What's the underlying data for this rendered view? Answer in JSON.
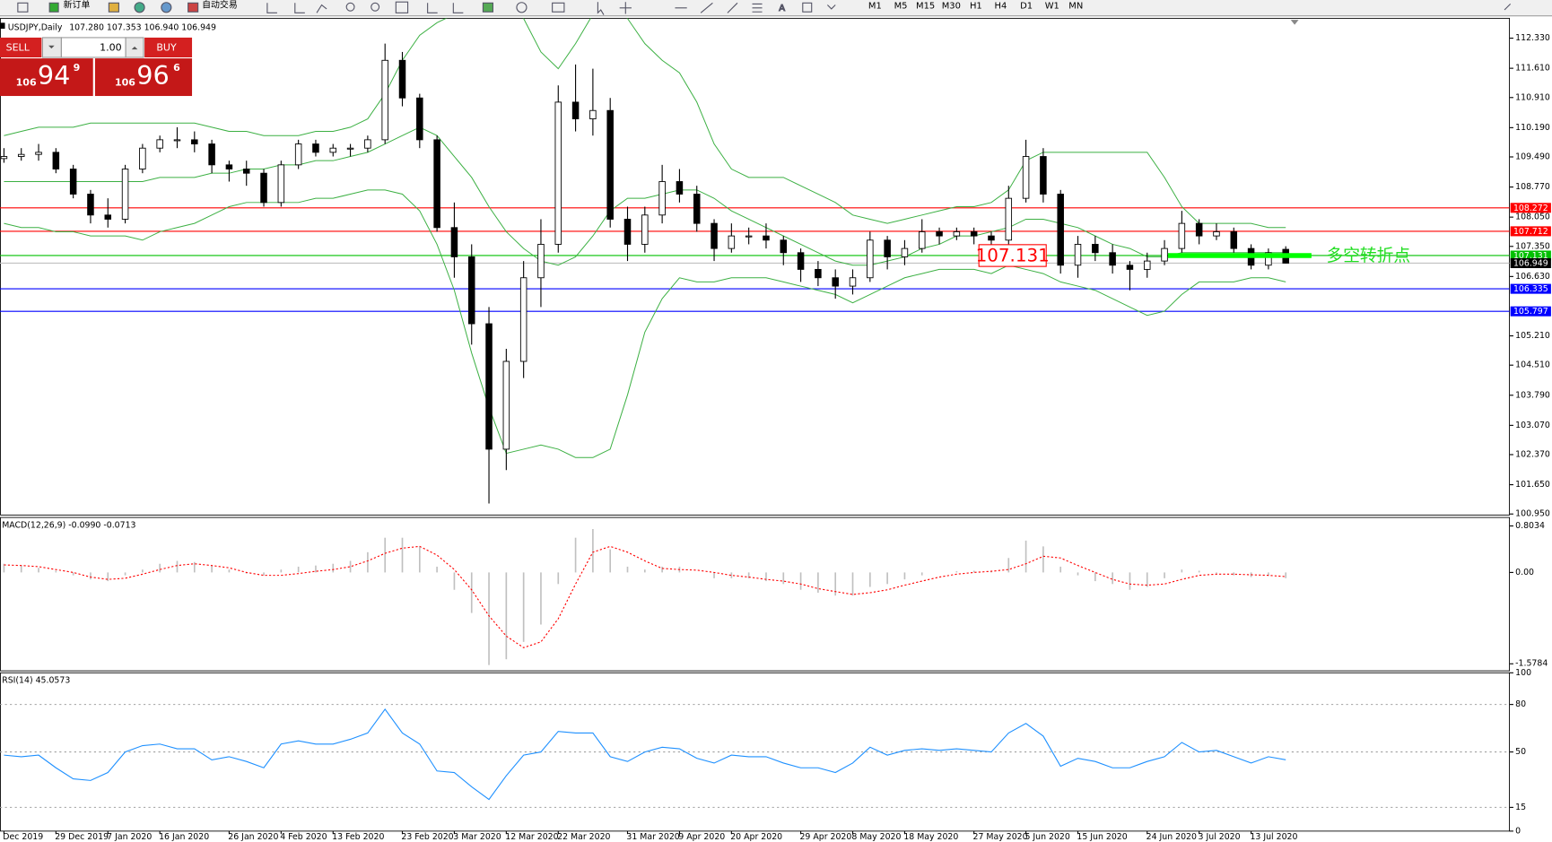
{
  "toolbar": {
    "new_order": "新订单",
    "auto_trading": "自动交易",
    "timeframes": [
      "M1",
      "M5",
      "M15",
      "M30",
      "H1",
      "H4",
      "D1",
      "W1",
      "MN"
    ]
  },
  "trade_panel": {
    "sell": "SELL",
    "buy": "BUY",
    "lots": "1.00",
    "bid": {
      "big": "106",
      "main": "94",
      "pip": "9"
    },
    "ask": {
      "big": "106",
      "main": "96",
      "pip": "6"
    }
  },
  "chart_data": [
    {
      "type": "candlestick",
      "title": "USDJPY,Daily",
      "subtitle": "107.280 107.353 106.940 106.949",
      "annotation": "多空转折点",
      "dates": [
        "Dec 2019",
        null,
        null,
        "29 Dec 2019",
        null,
        null,
        "7 Jan 2020",
        null,
        null,
        "16 Jan 2020",
        null,
        null,
        null,
        "26 Jan 2020",
        null,
        null,
        "4 Feb 2020",
        null,
        null,
        "13 Feb 2020",
        null,
        null,
        null,
        "23 Feb 2020",
        null,
        null,
        "3 Mar 2020",
        null,
        null,
        "12 Mar 2020",
        null,
        null,
        "22 Mar 2020",
        null,
        null,
        null,
        "31 Mar 2020",
        null,
        null,
        "9 Apr 2020",
        null,
        null,
        "20 Apr 2020",
        null,
        null,
        null,
        "29 Apr 2020",
        null,
        null,
        "8 May 2020",
        null,
        null,
        "18 May 2020",
        null,
        null,
        null,
        "27 May 2020",
        null,
        null,
        "5 Jun 2020",
        null,
        null,
        "15 Jun 2020",
        null,
        null,
        null,
        "24 Jun 2020",
        null,
        null,
        "3 Jul 2020",
        null,
        null,
        "13 Jul 2020",
        null,
        null
      ],
      "ohlc": [
        [
          109.45,
          109.7,
          109.35,
          109.5
        ],
        [
          109.5,
          109.7,
          109.4,
          109.55
        ],
        [
          109.55,
          109.8,
          109.4,
          109.6
        ],
        [
          109.6,
          109.7,
          109.1,
          109.2
        ],
        [
          109.2,
          109.3,
          108.5,
          108.6
        ],
        [
          108.6,
          108.7,
          107.9,
          108.1
        ],
        [
          108.1,
          108.5,
          107.8,
          108.0
        ],
        [
          108.0,
          109.3,
          107.9,
          109.2
        ],
        [
          109.2,
          109.8,
          109.1,
          109.7
        ],
        [
          109.7,
          110.0,
          109.6,
          109.9
        ],
        [
          109.9,
          110.2,
          109.7,
          109.9
        ],
        [
          109.9,
          110.1,
          109.6,
          109.8
        ],
        [
          109.8,
          109.9,
          109.1,
          109.3
        ],
        [
          109.3,
          109.4,
          108.9,
          109.2
        ],
        [
          109.2,
          109.4,
          108.8,
          109.1
        ],
        [
          109.1,
          109.2,
          108.3,
          108.4
        ],
        [
          108.4,
          109.4,
          108.3,
          109.3
        ],
        [
          109.3,
          109.9,
          109.2,
          109.8
        ],
        [
          109.8,
          109.9,
          109.5,
          109.6
        ],
        [
          109.6,
          109.8,
          109.5,
          109.7
        ],
        [
          109.7,
          109.8,
          109.5,
          109.7
        ],
        [
          109.7,
          110.0,
          109.6,
          109.9
        ],
        [
          109.9,
          112.2,
          109.8,
          111.8
        ],
        [
          111.8,
          112.0,
          110.7,
          110.9
        ],
        [
          110.9,
          111.0,
          109.7,
          109.9
        ],
        [
          109.9,
          110.0,
          107.7,
          107.8
        ],
        [
          107.8,
          108.4,
          106.6,
          107.1
        ],
        [
          107.1,
          107.4,
          105.0,
          105.5
        ],
        [
          105.5,
          105.9,
          101.2,
          102.5
        ],
        [
          102.5,
          104.9,
          102.0,
          104.6
        ],
        [
          104.6,
          107.0,
          104.2,
          106.6
        ],
        [
          106.6,
          108.0,
          105.9,
          107.4
        ],
        [
          107.4,
          111.2,
          107.2,
          110.8
        ],
        [
          110.8,
          111.7,
          110.1,
          110.4
        ],
        [
          110.4,
          111.6,
          110.0,
          110.6
        ],
        [
          110.6,
          110.9,
          107.8,
          108.0
        ],
        [
          108.0,
          108.3,
          107.0,
          107.4
        ],
        [
          107.4,
          108.3,
          107.2,
          108.1
        ],
        [
          108.1,
          109.3,
          107.9,
          108.9
        ],
        [
          108.9,
          109.2,
          108.4,
          108.6
        ],
        [
          108.6,
          108.8,
          107.7,
          107.9
        ],
        [
          107.9,
          108.0,
          107.0,
          107.3
        ],
        [
          107.3,
          107.9,
          107.2,
          107.6
        ],
        [
          107.6,
          107.8,
          107.4,
          107.6
        ],
        [
          107.6,
          107.9,
          107.3,
          107.5
        ],
        [
          107.5,
          107.6,
          106.9,
          107.2
        ],
        [
          107.2,
          107.3,
          106.5,
          106.8
        ],
        [
          106.8,
          107.0,
          106.4,
          106.6
        ],
        [
          106.6,
          106.8,
          106.1,
          106.4
        ],
        [
          106.4,
          106.8,
          106.2,
          106.6
        ],
        [
          106.6,
          107.7,
          106.5,
          107.5
        ],
        [
          107.5,
          107.6,
          106.8,
          107.1
        ],
        [
          107.1,
          107.5,
          106.9,
          107.3
        ],
        [
          107.3,
          108.0,
          107.2,
          107.7
        ],
        [
          107.7,
          107.8,
          107.4,
          107.6
        ],
        [
          107.6,
          107.8,
          107.5,
          107.7
        ],
        [
          107.7,
          107.8,
          107.4,
          107.6
        ],
        [
          107.6,
          107.7,
          107.3,
          107.5
        ],
        [
          107.5,
          108.8,
          107.4,
          108.5
        ],
        [
          108.5,
          109.9,
          108.4,
          109.5
        ],
        [
          109.5,
          109.7,
          108.4,
          108.6
        ],
        [
          108.6,
          108.7,
          106.7,
          106.9
        ],
        [
          106.9,
          107.6,
          106.6,
          107.4
        ],
        [
          107.4,
          107.6,
          107.0,
          107.2
        ],
        [
          107.2,
          107.4,
          106.7,
          106.9
        ],
        [
          106.9,
          107.0,
          106.3,
          106.8
        ],
        [
          106.8,
          107.2,
          106.6,
          107.0
        ],
        [
          107.0,
          107.5,
          106.9,
          107.3
        ],
        [
          107.3,
          108.2,
          107.2,
          107.9
        ],
        [
          107.9,
          108.0,
          107.4,
          107.6
        ],
        [
          107.6,
          107.9,
          107.5,
          107.7
        ],
        [
          107.7,
          107.8,
          107.2,
          107.3
        ],
        [
          107.3,
          107.4,
          106.8,
          106.9
        ],
        [
          106.9,
          107.3,
          106.8,
          107.2
        ],
        [
          107.28,
          107.353,
          106.94,
          106.949
        ]
      ],
      "bands": [
        {
          "color": "#3cb043",
          "values": [
            110.0,
            110.1,
            110.2,
            110.2,
            110.2,
            110.3,
            110.3,
            110.3,
            110.3,
            110.3,
            110.3,
            110.3,
            110.2,
            110.1,
            110.1,
            110.0,
            110.0,
            110.0,
            110.1,
            110.1,
            110.2,
            110.4,
            111.0,
            111.8,
            112.4,
            112.7,
            112.9,
            113.5,
            113.8,
            113.4,
            112.8,
            112.0,
            111.6,
            112.2,
            112.9,
            113.2,
            112.8,
            112.2,
            111.8,
            111.5,
            110.8,
            109.8,
            109.2,
            109.0,
            109.0,
            109.0,
            108.8,
            108.6,
            108.4,
            108.1,
            108.0,
            107.9,
            108.0,
            108.1,
            108.2,
            108.3,
            108.3,
            108.4,
            108.7,
            109.4,
            109.6,
            109.6,
            109.6,
            109.6,
            109.6,
            109.6,
            109.6,
            109.0,
            108.3,
            107.9,
            107.9,
            107.9,
            107.9,
            107.8,
            107.8
          ]
        },
        {
          "color": "#3cb043",
          "values": [
            108.9,
            108.9,
            108.9,
            108.9,
            108.9,
            108.9,
            108.9,
            108.9,
            108.9,
            109.0,
            109.0,
            109.0,
            109.1,
            109.1,
            109.2,
            109.2,
            109.3,
            109.3,
            109.4,
            109.4,
            109.5,
            109.6,
            109.8,
            110.0,
            110.2,
            110.0,
            109.5,
            109.0,
            108.3,
            107.7,
            107.3,
            107.0,
            106.9,
            107.1,
            107.6,
            108.2,
            108.5,
            108.5,
            108.6,
            108.7,
            108.7,
            108.5,
            108.2,
            108.0,
            107.8,
            107.6,
            107.4,
            107.2,
            107.0,
            106.9,
            106.9,
            107.0,
            107.1,
            107.3,
            107.4,
            107.6,
            107.6,
            107.7,
            107.8,
            108.0,
            108.0,
            107.9,
            107.8,
            107.6,
            107.4,
            107.3,
            107.1,
            107.1,
            107.2,
            107.2,
            107.2,
            107.2,
            107.2,
            107.2,
            107.2
          ]
        },
        {
          "color": "#3cb043",
          "values": [
            107.9,
            107.8,
            107.8,
            107.7,
            107.7,
            107.6,
            107.6,
            107.6,
            107.5,
            107.7,
            107.8,
            107.9,
            108.1,
            108.3,
            108.4,
            108.4,
            108.4,
            108.4,
            108.5,
            108.5,
            108.6,
            108.7,
            108.7,
            108.6,
            108.2,
            107.4,
            106.3,
            104.8,
            103.5,
            102.4,
            102.5,
            102.6,
            102.5,
            102.3,
            102.3,
            102.5,
            103.8,
            105.3,
            106.1,
            106.6,
            106.5,
            106.5,
            106.6,
            106.6,
            106.6,
            106.5,
            106.4,
            106.3,
            106.2,
            106.0,
            106.2,
            106.4,
            106.6,
            106.7,
            106.8,
            106.8,
            106.8,
            106.7,
            106.9,
            106.8,
            106.7,
            106.5,
            106.4,
            106.3,
            106.1,
            105.9,
            105.7,
            105.8,
            106.2,
            106.5,
            106.5,
            106.5,
            106.6,
            106.6,
            106.5
          ]
        }
      ],
      "hlines": [
        {
          "value": 108.272,
          "color": "#ff0000",
          "label_color": "#ff0000"
        },
        {
          "value": 107.712,
          "color": "#ff0000",
          "label_color": "#ff0000"
        },
        {
          "value": 107.131,
          "color": "#00c000",
          "label_color": "#00c000"
        },
        {
          "value": 106.949,
          "color": "#c0c0c0",
          "label_color": "#000000"
        },
        {
          "value": 106.335,
          "color": "#0000ff",
          "label_color": "#0000ff"
        },
        {
          "value": 105.797,
          "color": "#0000ff",
          "label_color": "#0000ff"
        }
      ],
      "ylim": [
        100.926,
        112.805
      ],
      "yticks": [
        {
          "value": 112.33,
          "label": "112.330"
        },
        {
          "value": 111.61,
          "label": "111.610"
        },
        {
          "value": 110.91,
          "label": "110.910"
        },
        {
          "value": 110.19,
          "label": "110.190"
        },
        {
          "value": 109.49,
          "label": "109.490"
        },
        {
          "value": 108.77,
          "label": "108.770"
        },
        {
          "value": 108.05,
          "label": "108.050"
        },
        {
          "value": 107.35,
          "label": "107.350"
        },
        {
          "value": 106.63,
          "label": "106.630"
        },
        {
          "value": 105.21,
          "label": "105.210"
        },
        {
          "value": 104.51,
          "label": "104.510"
        },
        {
          "value": 103.79,
          "label": "103.790"
        },
        {
          "value": 103.07,
          "label": "103.070"
        },
        {
          "value": 102.37,
          "label": "102.370"
        },
        {
          "value": 101.65,
          "label": "101.650"
        },
        {
          "value": 100.95,
          "label": "100.950"
        }
      ]
    },
    {
      "type": "macd",
      "title": "MACD(12,26,9) -0.0990 -0.0713",
      "histogram": [
        0.15,
        0.12,
        0.08,
        0.03,
        -0.05,
        -0.12,
        -0.15,
        -0.05,
        0.05,
        0.15,
        0.2,
        0.18,
        0.12,
        0.05,
        -0.02,
        -0.05,
        0.05,
        0.1,
        0.12,
        0.15,
        0.2,
        0.35,
        0.6,
        0.6,
        0.45,
        0.1,
        -0.3,
        -0.7,
        -1.6,
        -1.5,
        -1.2,
        -0.9,
        -0.2,
        0.6,
        0.75,
        0.4,
        0.1,
        0.05,
        0.1,
        0.1,
        0.0,
        -0.1,
        -0.1,
        -0.1,
        -0.15,
        -0.2,
        -0.3,
        -0.35,
        -0.4,
        -0.4,
        -0.25,
        -0.2,
        -0.12,
        -0.05,
        0.0,
        0.02,
        0.03,
        0.03,
        0.25,
        0.55,
        0.45,
        0.1,
        -0.05,
        -0.15,
        -0.2,
        -0.3,
        -0.25,
        -0.1,
        0.05,
        0.03,
        -0.02,
        -0.05,
        -0.08,
        -0.06,
        -0.099
      ],
      "signal": [
        0.13,
        0.12,
        0.1,
        0.05,
        0.0,
        -0.08,
        -0.12,
        -0.1,
        -0.03,
        0.05,
        0.12,
        0.15,
        0.12,
        0.08,
        0.0,
        -0.05,
        -0.05,
        -0.02,
        0.02,
        0.05,
        0.1,
        0.2,
        0.33,
        0.42,
        0.45,
        0.3,
        0.05,
        -0.3,
        -0.75,
        -1.1,
        -1.3,
        -1.2,
        -0.8,
        -0.2,
        0.35,
        0.45,
        0.35,
        0.2,
        0.07,
        0.05,
        0.04,
        0.0,
        -0.05,
        -0.08,
        -0.12,
        -0.15,
        -0.2,
        -0.28,
        -0.33,
        -0.38,
        -0.35,
        -0.3,
        -0.22,
        -0.15,
        -0.08,
        -0.03,
        0.0,
        0.02,
        0.05,
        0.15,
        0.28,
        0.25,
        0.12,
        0.0,
        -0.12,
        -0.2,
        -0.22,
        -0.2,
        -0.12,
        -0.05,
        -0.03,
        -0.03,
        -0.04,
        -0.05,
        -0.0713
      ],
      "histogram_color": "#c0c0c0",
      "signal_color": "#ff0000",
      "ylim": [
        -1.7,
        0.95
      ],
      "yticks": [
        0.8034,
        {
          "value": 0,
          "label": "0.00"
        },
        -1.5784
      ]
    },
    {
      "type": "rsi",
      "title": "RSI(14) 45.0573",
      "values": [
        48,
        47,
        48,
        40,
        33,
        32,
        37,
        50,
        54,
        55,
        52,
        52,
        45,
        47,
        44,
        40,
        55,
        57,
        55,
        55,
        58,
        62,
        77,
        62,
        55,
        38,
        37,
        28,
        20,
        35,
        48,
        50,
        63,
        62,
        62,
        47,
        44,
        50,
        53,
        52,
        46,
        43,
        48,
        47,
        47,
        43,
        40,
        40,
        37,
        43,
        53,
        48,
        51,
        52,
        51,
        52,
        51,
        50,
        62,
        68,
        60,
        41,
        46,
        44,
        40,
        40,
        44,
        47,
        56,
        50,
        51,
        47,
        43,
        47,
        45.0573
      ],
      "color": "#1e90ff",
      "ylim": [
        0,
        100
      ],
      "yticks": [
        100,
        80,
        50,
        15,
        0
      ]
    }
  ]
}
